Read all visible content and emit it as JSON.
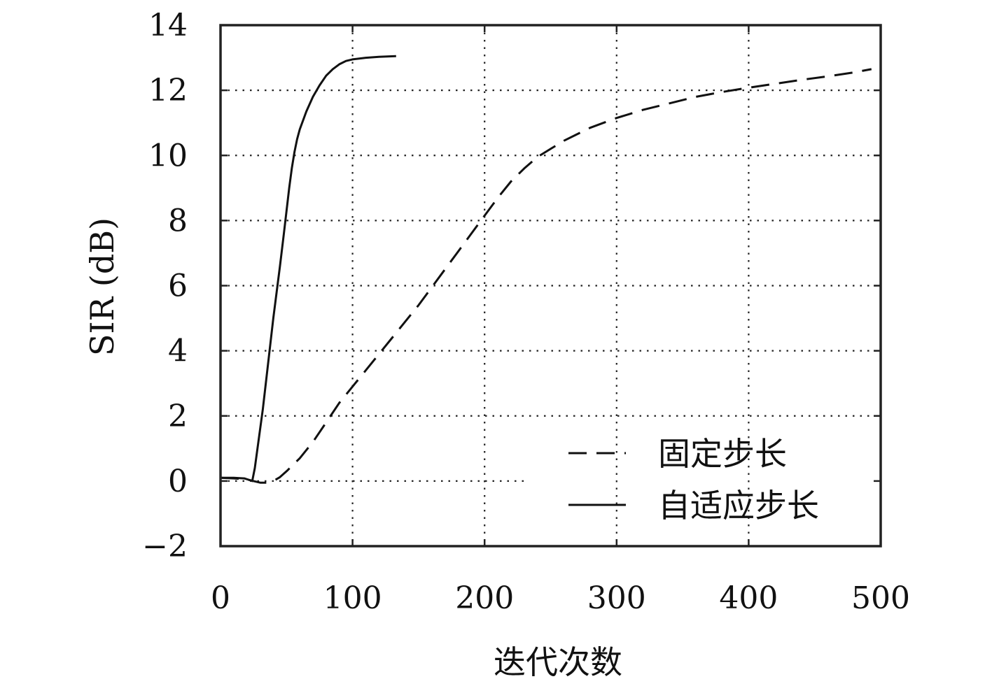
{
  "chart_data": {
    "type": "line",
    "title": "",
    "xlabel": "迭代次数",
    "ylabel": "SIR (dB)",
    "xlim": [
      0,
      500
    ],
    "ylim": [
      -2,
      14
    ],
    "xticks": [
      0,
      100,
      200,
      300,
      400,
      500
    ],
    "xtick_labels": [
      "0",
      "100",
      "200",
      "300",
      "400",
      "500"
    ],
    "yticks": [
      -2,
      0,
      2,
      4,
      6,
      8,
      10,
      12,
      14
    ],
    "ytick_labels": [
      "−2",
      "0",
      "2",
      "4",
      "6",
      "8",
      "10",
      "12",
      "14"
    ],
    "grid": true,
    "legend_position": "lower-right",
    "series": [
      {
        "name": "固定步长",
        "style": "dashed",
        "color": "#111111",
        "x": [
          0,
          10,
          20,
          25,
          30,
          35,
          40,
          45,
          50,
          60,
          70,
          80,
          90,
          100,
          110,
          120,
          130,
          140,
          150,
          160,
          170,
          180,
          190,
          200,
          210,
          220,
          230,
          240,
          250,
          260,
          270,
          280,
          290,
          300,
          320,
          340,
          360,
          380,
          400,
          420,
          440,
          460,
          480,
          493
        ],
        "y": [
          0.1,
          0.08,
          0.05,
          0.0,
          -0.05,
          -0.05,
          0.0,
          0.12,
          0.3,
          0.7,
          1.2,
          1.8,
          2.4,
          2.9,
          3.4,
          3.9,
          4.4,
          4.9,
          5.4,
          5.95,
          6.5,
          7.05,
          7.6,
          8.15,
          8.7,
          9.2,
          9.6,
          9.95,
          10.2,
          10.45,
          10.65,
          10.85,
          11.0,
          11.15,
          11.4,
          11.6,
          11.8,
          11.95,
          12.08,
          12.2,
          12.32,
          12.43,
          12.55,
          12.65
        ]
      },
      {
        "name": "自适应步长",
        "style": "solid",
        "color": "#111111",
        "x": [
          0,
          10,
          18,
          22,
          24,
          26,
          28,
          32,
          36,
          40,
          45,
          48,
          50,
          52,
          54,
          56,
          58,
          60,
          65,
          70,
          75,
          80,
          85,
          90,
          95,
          100,
          110,
          120,
          133
        ],
        "y": [
          0.1,
          0.1,
          0.08,
          0.03,
          0.0,
          0.4,
          1.0,
          2.2,
          3.6,
          5.0,
          6.6,
          7.6,
          8.3,
          9.0,
          9.6,
          10.1,
          10.5,
          10.8,
          11.35,
          11.8,
          12.15,
          12.45,
          12.65,
          12.8,
          12.9,
          12.95,
          13.0,
          13.03,
          13.05
        ]
      }
    ]
  }
}
